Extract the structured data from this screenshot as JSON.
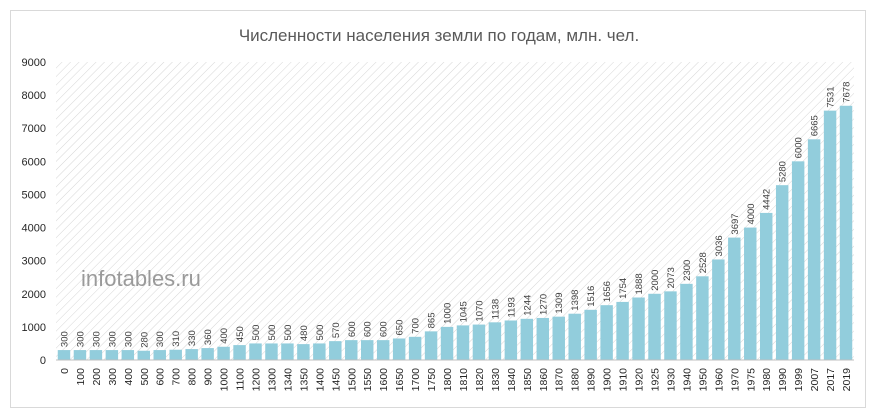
{
  "watermark": "infotables.ru",
  "chart_data": {
    "type": "bar",
    "title": "Численности населения земли по годам, млн. чел.",
    "xlabel": "",
    "ylabel": "",
    "ylim": [
      0,
      9000
    ],
    "yticks": [
      0,
      1000,
      2000,
      3000,
      4000,
      5000,
      6000,
      7000,
      8000,
      9000
    ],
    "grid": false,
    "legend": "none",
    "bar_color": "#92CDDC",
    "hatch_color": "#d6d6d6",
    "categories": [
      "0",
      "100",
      "200",
      "300",
      "400",
      "500",
      "600",
      "700",
      "800",
      "900",
      "1000",
      "1100",
      "1200",
      "1300",
      "1340",
      "1350",
      "1400",
      "1450",
      "1500",
      "1550",
      "1600",
      "1650",
      "1700",
      "1750",
      "1800",
      "1810",
      "1820",
      "1830",
      "1840",
      "1850",
      "1860",
      "1870",
      "1880",
      "1890",
      "1900",
      "1910",
      "1920",
      "1925",
      "1930",
      "1940",
      "1950",
      "1960",
      "1970",
      "1975",
      "1980",
      "1990",
      "1999",
      "2007",
      "2017",
      "2019"
    ],
    "values": [
      300,
      300,
      300,
      300,
      300,
      280,
      300,
      310,
      330,
      360,
      400,
      450,
      500,
      500,
      500,
      480,
      500,
      570,
      600,
      600,
      600,
      650,
      700,
      865,
      1000,
      1045,
      1070,
      1138,
      1193,
      1244,
      1270,
      1309,
      1398,
      1516,
      1656,
      1754,
      1888,
      2000,
      2073,
      2300,
      2528,
      3036,
      3697,
      4000,
      4442,
      5280,
      6000,
      6665,
      7531,
      7678
    ]
  }
}
